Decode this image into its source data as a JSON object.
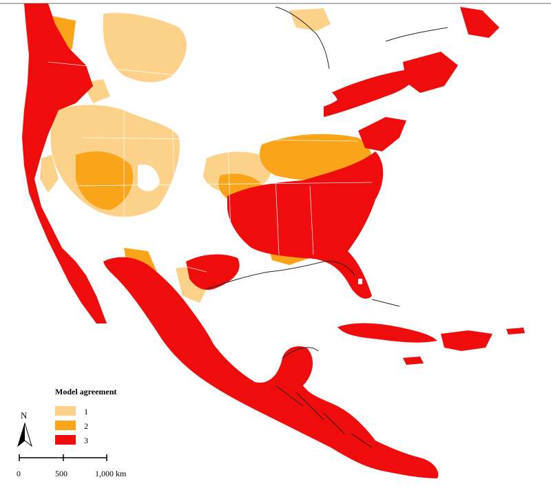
{
  "legend": {
    "title": "Model agreement",
    "classes": [
      {
        "label": "1",
        "color": "#fcd28a"
      },
      {
        "label": "2",
        "color": "#f9a419"
      },
      {
        "label": "3",
        "color": "#ee0c0c"
      }
    ]
  },
  "north_arrow": {
    "label": "N"
  },
  "scale_bar": {
    "ticks": [
      "0",
      "500",
      "1,000 km"
    ]
  },
  "colors": {
    "background": "#ffffff",
    "agreement_1": "#fcd28a",
    "agreement_2": "#f9a419",
    "agreement_3": "#ee0c0c",
    "boundaries": "#ffffff",
    "coastline": "#222222"
  }
}
